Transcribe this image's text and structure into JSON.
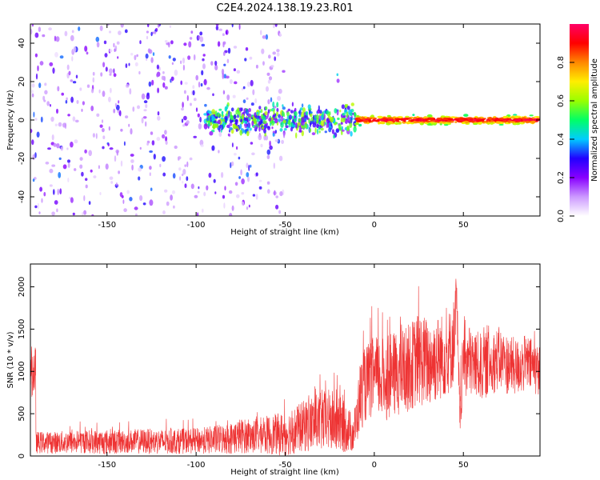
{
  "chart_data": [
    {
      "type": "heatmap",
      "title": "C2E4.2024.138.19.23.R01",
      "xlabel": "Height of straight line (km)",
      "ylabel": "Frequency (Hz)",
      "xlim": [
        -193,
        93
      ],
      "ylim": [
        -50,
        50
      ],
      "xticks": [
        -150,
        -100,
        -50,
        0,
        50
      ],
      "yticks": [
        -40,
        -20,
        0,
        20,
        40
      ],
      "colorbar": {
        "label": "Normalized spectral amplitude",
        "range": [
          0.0,
          1.0
        ],
        "ticks": [
          0.0,
          0.2,
          0.4,
          0.6,
          0.8
        ],
        "colors": [
          "#ffffff",
          "#cc99ff",
          "#8800ff",
          "#2200ff",
          "#00ccff",
          "#00ff66",
          "#99ff00",
          "#ffee00",
          "#ff8800",
          "#ff0000",
          "#ff0066"
        ]
      },
      "regions": [
        {
          "name": "scattered noise",
          "x_range": [
            -193,
            -50
          ],
          "freq_range": [
            -50,
            50
          ],
          "amplitude": 0.25
        },
        {
          "name": "noise spike",
          "x_range": [
            -22,
            -18
          ],
          "freq_range": [
            12,
            25
          ],
          "amplitude": 0.3
        },
        {
          "name": "spread signal",
          "x_range": [
            -95,
            -10
          ],
          "freq_range": [
            -10,
            10
          ],
          "amplitude": 0.45
        },
        {
          "name": "strong carrier",
          "x_range": [
            -10,
            93
          ],
          "freq_range": [
            -3,
            3
          ],
          "amplitude": 0.9
        }
      ]
    },
    {
      "type": "line",
      "xlabel": "Height of straight line (km)",
      "ylabel": "SNR (10 * v/v)",
      "xlim": [
        -193,
        93
      ],
      "ylim": [
        0,
        2270
      ],
      "xticks": [
        -150,
        -100,
        -50,
        0,
        50
      ],
      "yticks": [
        0,
        500,
        1000,
        1500,
        2000
      ],
      "color": "#ee3333",
      "series": [
        {
          "name": "SNR",
          "x": [
            -190,
            -180,
            -170,
            -160,
            -150,
            -140,
            -130,
            -120,
            -110,
            -100,
            -90,
            -80,
            -75,
            -70,
            -60,
            -50,
            -45,
            -40,
            -35,
            -30,
            -25,
            -20,
            -15,
            -12,
            -10,
            -8,
            -5,
            0,
            5,
            10,
            15,
            20,
            25,
            30,
            35,
            40,
            43,
            45,
            46,
            47,
            48,
            50,
            55,
            60,
            65,
            70,
            75,
            80,
            85,
            90,
            93
          ],
          "y": [
            160,
            160,
            165,
            170,
            165,
            170,
            175,
            170,
            175,
            180,
            190,
            210,
            240,
            230,
            250,
            260,
            300,
            350,
            380,
            400,
            420,
            380,
            320,
            260,
            420,
            700,
            850,
            950,
            900,
            950,
            1000,
            1050,
            1150,
            1100,
            1150,
            1200,
            1250,
            1400,
            2000,
            1150,
            450,
            1150,
            1100,
            1050,
            1100,
            1150,
            1080,
            1050,
            1100,
            1050,
            1000
          ],
          "amplitude": [
            130,
            130,
            140,
            140,
            150,
            140,
            150,
            150,
            150,
            150,
            170,
            190,
            210,
            200,
            230,
            260,
            280,
            300,
            340,
            350,
            380,
            350,
            280,
            220,
            300,
            420,
            450,
            480,
            500,
            500,
            520,
            520,
            560,
            540,
            520,
            500,
            500,
            520,
            200,
            450,
            250,
            480,
            420,
            400,
            380,
            380,
            360,
            340,
            340,
            320,
            300
          ]
        }
      ]
    }
  ]
}
